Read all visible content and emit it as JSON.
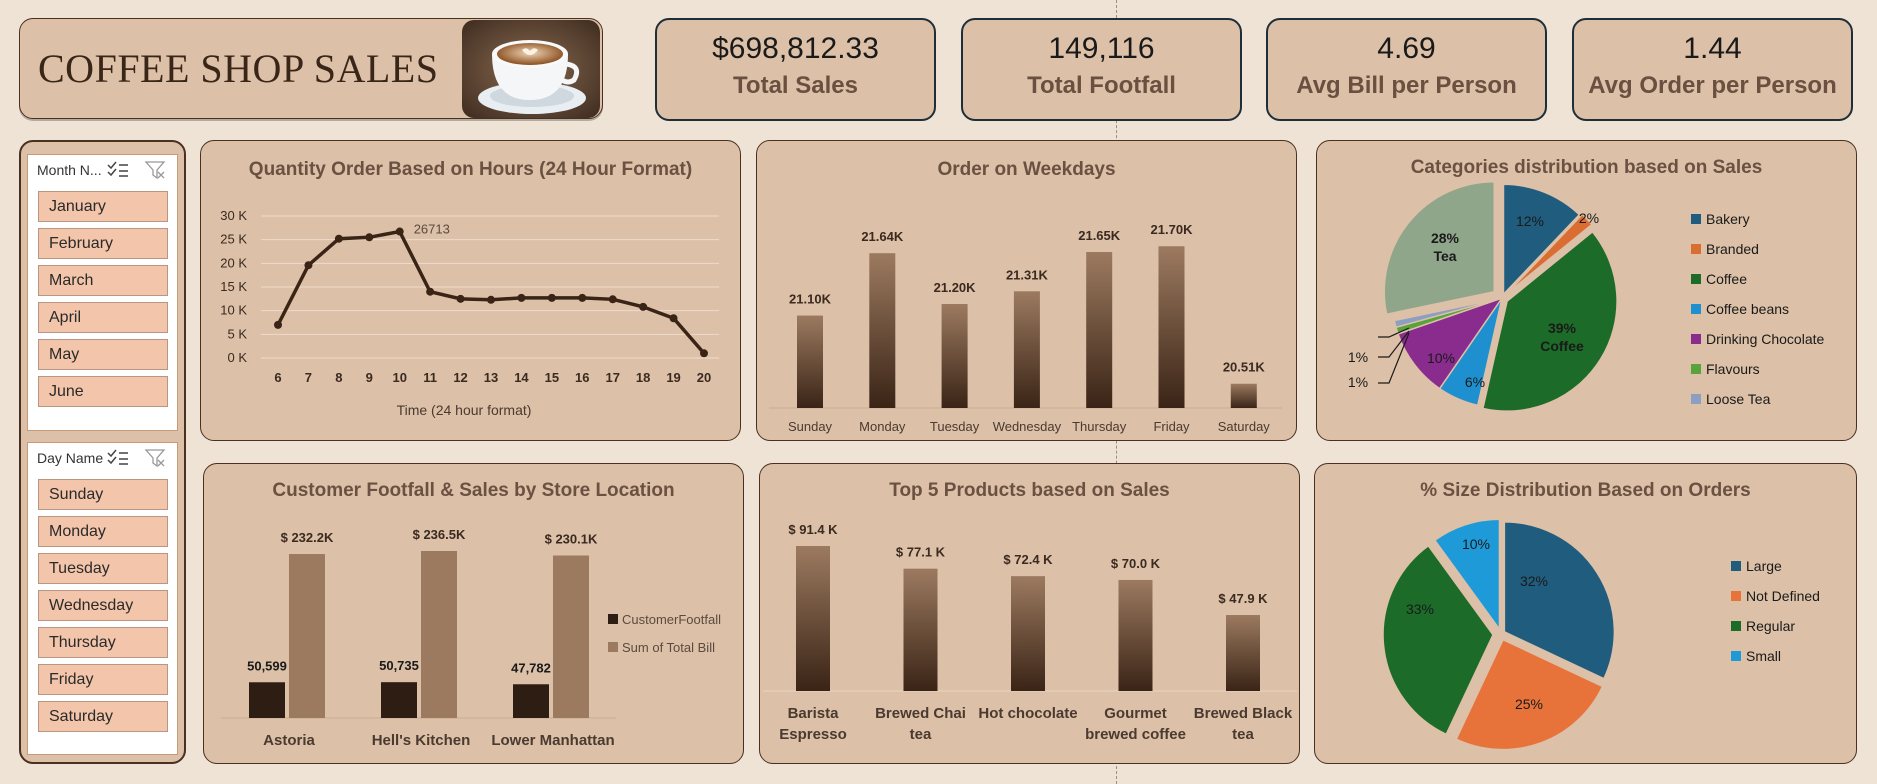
{
  "header": {
    "title": "COFFEE SHOP SALES"
  },
  "kpis": [
    {
      "value": "$698,812.33",
      "label": "Total Sales"
    },
    {
      "value": "149,116",
      "label": "Total Footfall"
    },
    {
      "value": "4.69",
      "label": "Avg Bill per Person"
    },
    {
      "value": "1.44",
      "label": "Avg Order per Person"
    }
  ],
  "slicers": {
    "month": {
      "title": "Month N...",
      "items": [
        "January",
        "February",
        "March",
        "April",
        "May",
        "June"
      ]
    },
    "day": {
      "title": "Day Name",
      "items": [
        "Sunday",
        "Monday",
        "Tuesday",
        "Wednesday",
        "Thursday",
        "Friday",
        "Saturday"
      ]
    }
  },
  "chart_data": [
    {
      "id": "hours",
      "type": "line",
      "title": "Quantity Order Based on Hours  (24 Hour Format)",
      "xlabel": "Time (24 hour format)",
      "ylabel": "",
      "x": [
        6,
        7,
        8,
        9,
        10,
        11,
        12,
        13,
        14,
        15,
        16,
        17,
        18,
        19,
        20
      ],
      "y": [
        7000,
        19600,
        25200,
        25500,
        26713,
        14000,
        12500,
        12300,
        12700,
        12700,
        12700,
        12400,
        10800,
        8400,
        1000
      ],
      "ylim": [
        0,
        30000
      ],
      "yticks": [
        "0 K",
        "5 K",
        "10 K",
        "15 K",
        "20 K",
        "25 K",
        "30 K"
      ],
      "annotation": "26713",
      "grid": true,
      "colors": {
        "line": "#3a2416"
      }
    },
    {
      "id": "weekdays",
      "type": "bar",
      "title": "Order on Weekdays",
      "categories": [
        "Sunday",
        "Monday",
        "Tuesday",
        "Wednesday",
        "Thursday",
        "Friday",
        "Saturday"
      ],
      "values": [
        21100,
        21640,
        21200,
        21310,
        21650,
        21700,
        20510
      ],
      "labels": [
        "21.10K",
        "21.64K",
        "21.20K",
        "21.31K",
        "21.65K",
        "21.70K",
        "20.51K"
      ],
      "ylim": [
        20300,
        21780
      ],
      "colors": {
        "bar_top": "#9c7a60",
        "bar_bottom": "#3a2416"
      }
    },
    {
      "id": "categories",
      "type": "pie",
      "title": "Categories distribution based on Sales",
      "labels": [
        "Bakery",
        "Branded",
        "Coffee",
        "Coffee beans",
        "Drinking Chocolate",
        "Flavours",
        "Loose Tea",
        "Tea"
      ],
      "values": [
        12,
        2,
        39,
        6,
        10,
        1,
        1,
        28
      ],
      "legend": [
        "Bakery",
        "Branded",
        "Coffee",
        "Coffee beans",
        "Drinking Chocolate",
        "Flavours",
        "Loose Tea"
      ],
      "data_labels": [
        "12%",
        "2%",
        "39%",
        "6%",
        "10%",
        "1%",
        "1%",
        "28%"
      ],
      "colors": [
        "#1f5c7e",
        "#d96d32",
        "#1c6b28",
        "#1e8fcf",
        "#8a2c8e",
        "#5aa33c",
        "#8c9fc0",
        "#8fa68b"
      ],
      "legend_position": "right"
    },
    {
      "id": "store",
      "type": "bar",
      "title": "Customer Footfall & Sales by Store Location",
      "categories": [
        "Astoria",
        "Hell's Kitchen",
        "Lower Manhattan"
      ],
      "series": [
        {
          "name": "CustomerFootfall",
          "values": [
            50599,
            50735,
            47782
          ],
          "labels": [
            "50,599",
            "50,735",
            "47,782"
          ]
        },
        {
          "name": "Sum of Total Bill",
          "values": [
            232200,
            236500,
            230100
          ],
          "labels": [
            "$ 232.2K",
            "$ 236.5K",
            "$ 230.1K"
          ]
        }
      ],
      "colors": {
        "footfall": "#2e1d12",
        "bill": "#9c7a60"
      },
      "legend_position": "right"
    },
    {
      "id": "products",
      "type": "bar",
      "title": "Top 5 Products based on Sales",
      "categories": [
        "Barista Espresso",
        "Brewed Chai tea",
        "Hot chocolate",
        "Gourmet brewed coffee",
        "Brewed Black tea"
      ],
      "values": [
        91.4,
        77.1,
        72.4,
        70.0,
        47.9
      ],
      "labels": [
        "$ 91.4 K",
        "$ 77.1 K",
        "$ 72.4 K",
        "$ 70.0 K",
        "$ 47.9 K"
      ],
      "colors": {
        "bar_top": "#9c7a60",
        "bar_bottom": "#3a2416"
      }
    },
    {
      "id": "sizes",
      "type": "pie",
      "title": "% Size Distribution Based on Orders",
      "labels": [
        "Large",
        "Not Defined",
        "Regular",
        "Small"
      ],
      "values": [
        32,
        25,
        33,
        10
      ],
      "data_labels": [
        "32%",
        "25%",
        "33%",
        "10%"
      ],
      "colors": [
        "#1f5c7e",
        "#e8733a",
        "#1c6b28",
        "#1e9ad8"
      ],
      "legend_position": "right"
    }
  ]
}
